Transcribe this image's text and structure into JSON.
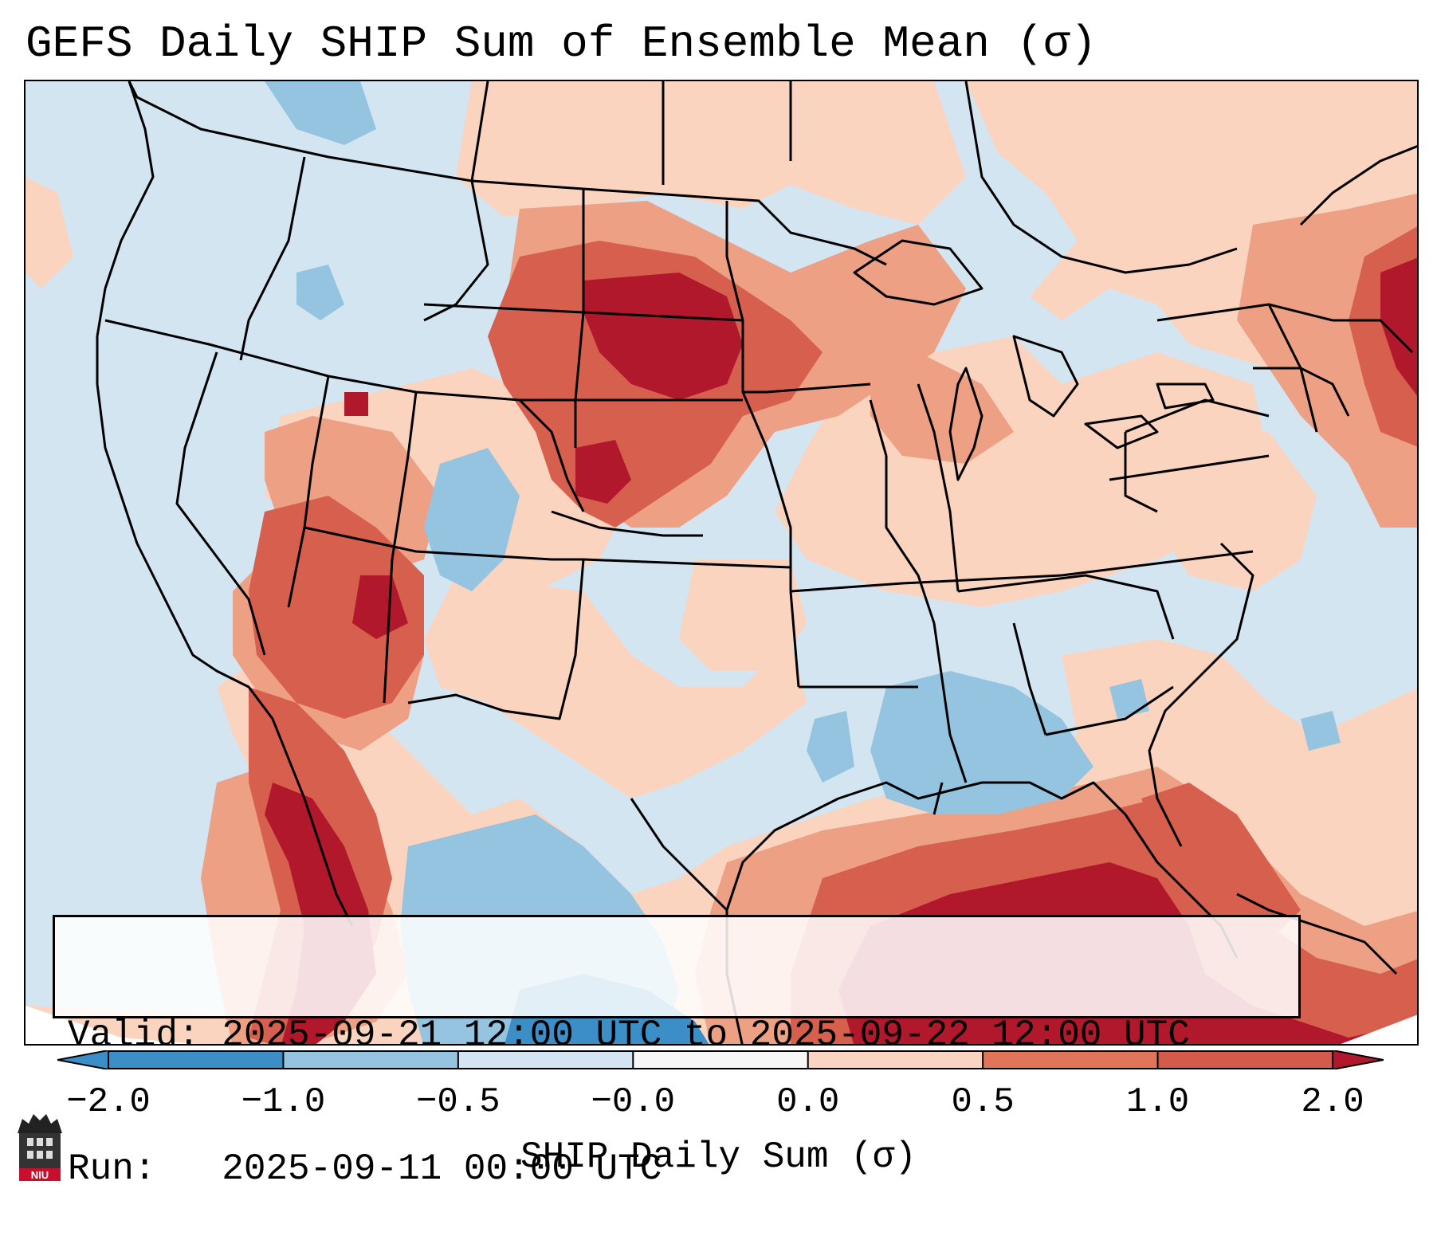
{
  "title": "GEFS Daily SHIP Sum of Ensemble Mean (σ)",
  "info": {
    "valid_line": "Valid: 2025-09-21 12:00 UTC to 2025-09-22 12:00 UTC",
    "run_line": "Run:   2025-09-11 00:00 UTC"
  },
  "colorbar": {
    "label": "SHIP Daily Sum (σ)",
    "ticks": [
      "−2.0",
      "−1.0",
      "−0.5",
      "−0.0",
      "0.0",
      "0.5",
      "1.0",
      "2.0"
    ],
    "colors": [
      "#3b8fc6",
      "#94c4df",
      "#d3e5f0",
      "#f7f7f7",
      "#f9d4c1",
      "#e0755a",
      "#d45b4b",
      "#b2182b"
    ],
    "extend": "both"
  },
  "legend_colors": {
    "strong_negative": "#3b8fc6",
    "negative": "#94c4df",
    "weak_negative": "#d3e5f0",
    "weak_positive": "#fbd7c4",
    "positive": "#f2a585",
    "strong_positive": "#d6604d",
    "extreme_positive": "#b2182b"
  },
  "logo_text": "NIU",
  "map": {
    "region": "Contiguous United States",
    "field": "SHIP daily sum anomaly"
  }
}
